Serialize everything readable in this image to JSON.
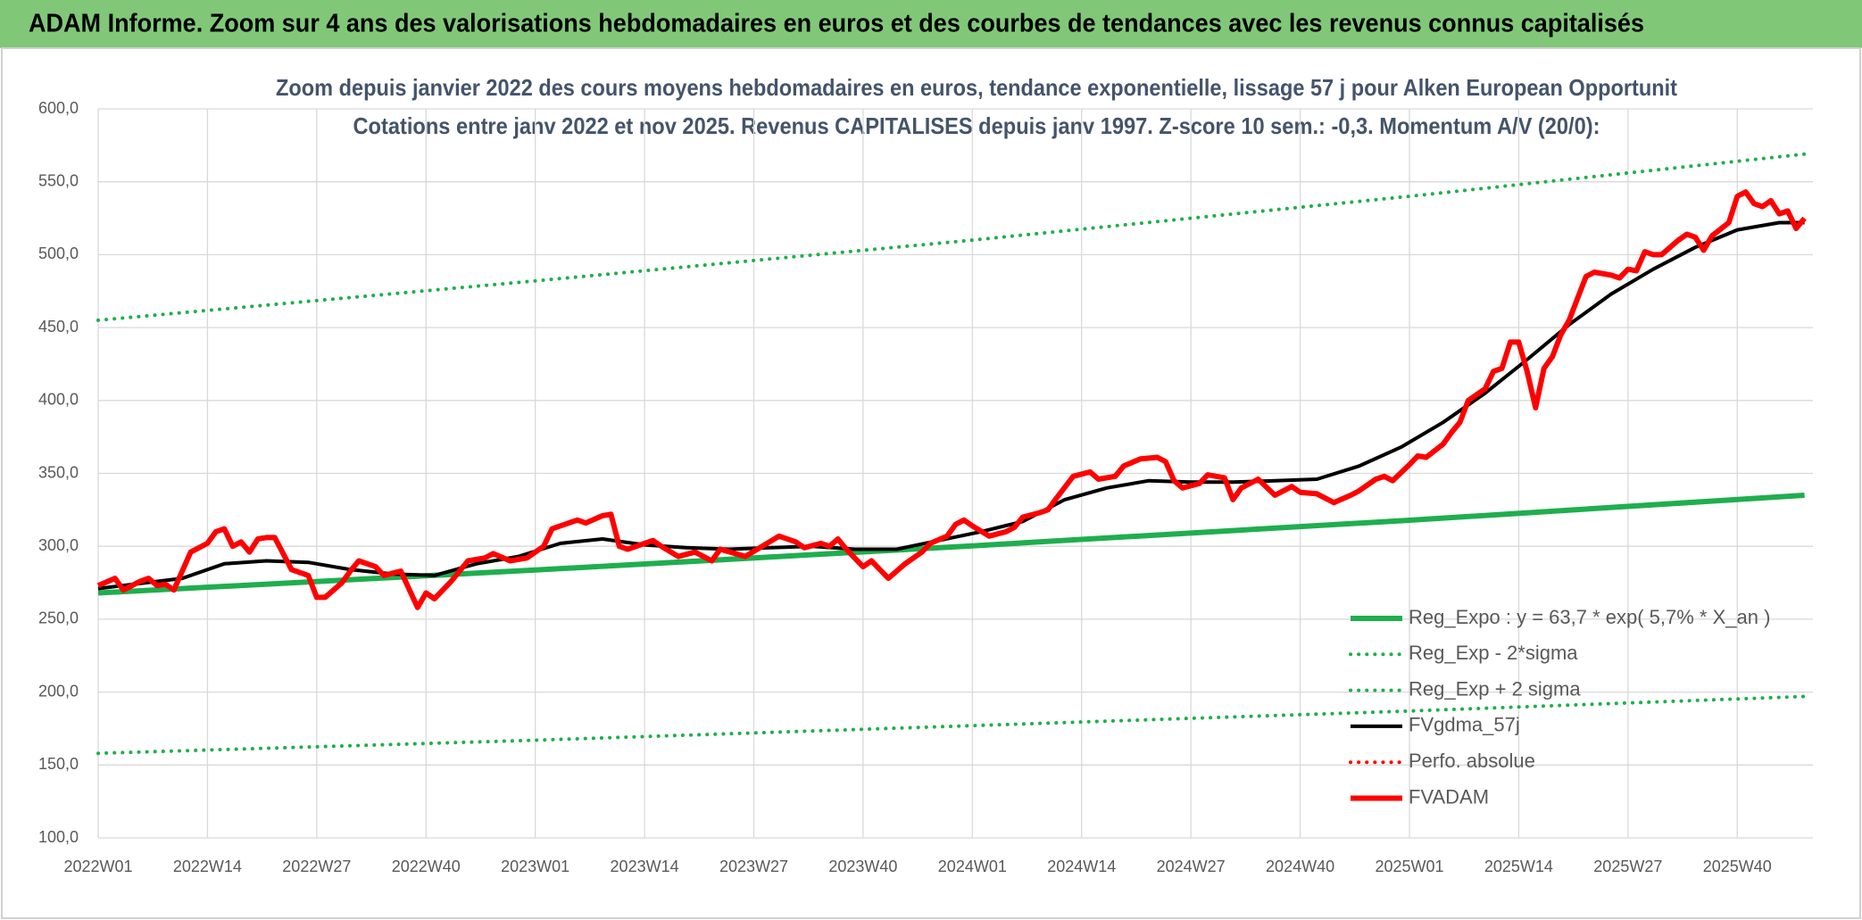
{
  "header": {
    "title": "ADAM Informe. Zoom sur 4 ans des valorisations hebdomadaires en euros et des courbes de tendances avec les revenus connus capitalisés"
  },
  "chart_data": {
    "type": "line",
    "title": "Zoom depuis janvier 2022 des cours moyens hebdomadaires en euros, tendance exponentielle, lissage 57 j pour Alken European Opportunit",
    "subtitle": "Cotations entre janv 2022 et nov 2025. Revenus CAPITALISES depuis janv 1997. Z-score 10 sem.: -0,3. Momentum A/V (20/0):",
    "xlim": [
      0,
      204
    ],
    "xticks": [
      {
        "value": 0,
        "label": "2022W01"
      },
      {
        "value": 13,
        "label": "2022W14"
      },
      {
        "value": 26,
        "label": "2022W27"
      },
      {
        "value": 39,
        "label": "2022W40"
      },
      {
        "value": 52,
        "label": "2023W01"
      },
      {
        "value": 65,
        "label": "2023W14"
      },
      {
        "value": 78,
        "label": "2023W27"
      },
      {
        "value": 91,
        "label": "2023W40"
      },
      {
        "value": 104,
        "label": "2024W01"
      },
      {
        "value": 117,
        "label": "2024W14"
      },
      {
        "value": 130,
        "label": "2024W27"
      },
      {
        "value": 143,
        "label": "2024W40"
      },
      {
        "value": 156,
        "label": "2025W01"
      },
      {
        "value": 169,
        "label": "2025W14"
      },
      {
        "value": 182,
        "label": "2025W27"
      },
      {
        "value": 195,
        "label": "2025W40"
      }
    ],
    "ylim": [
      100,
      600
    ],
    "yticks": [
      {
        "value": 100,
        "label": "100,0"
      },
      {
        "value": 150,
        "label": "150,0"
      },
      {
        "value": 200,
        "label": "200,0"
      },
      {
        "value": 250,
        "label": "250,0"
      },
      {
        "value": 300,
        "label": "300,0"
      },
      {
        "value": 350,
        "label": "350,0"
      },
      {
        "value": 400,
        "label": "400,0"
      },
      {
        "value": 450,
        "label": "450,0"
      },
      {
        "value": 500,
        "label": "500,0"
      },
      {
        "value": 550,
        "label": "550,0"
      },
      {
        "value": 600,
        "label": "600,0"
      }
    ],
    "grid": true,
    "legend": "lower right",
    "series": [
      {
        "name": "Reg_Expo : y = 63,7 * exp( 5,7% *  X_an )",
        "color": "#1fae4f",
        "style": "thick",
        "x": [
          0,
          52,
          104,
          156,
          203
        ],
        "values": [
          268,
          283.7,
          300.3,
          317.9,
          335
        ]
      },
      {
        "name": "Reg_Exp - 2*sigma",
        "color": "#1fae4f",
        "style": "dotted",
        "x": [
          0,
          52,
          104,
          156,
          203
        ],
        "values": [
          158,
          167,
          177,
          187,
          197
        ]
      },
      {
        "name": "Reg_Exp + 2 sigma",
        "color": "#1fae4f",
        "style": "dotted",
        "x": [
          0,
          52,
          104,
          156,
          203
        ],
        "values": [
          455,
          482,
          510,
          540,
          569
        ]
      },
      {
        "name": "FVgdma_57j",
        "color": "#000000",
        "style": "solid",
        "x": [
          0,
          10,
          15,
          20,
          25,
          30,
          35,
          40,
          45,
          50,
          55,
          60,
          65,
          70,
          75,
          80,
          85,
          90,
          95,
          100,
          105,
          110,
          115,
          120,
          125,
          130,
          135,
          140,
          145,
          150,
          155,
          160,
          165,
          170,
          175,
          180,
          185,
          190,
          195,
          200,
          203
        ],
        "values": [
          271,
          278,
          288,
          290,
          289,
          284,
          281,
          280,
          288,
          293,
          302,
          305,
          301,
          299,
          298,
          299,
          300,
          298,
          298,
          304,
          310,
          317,
          332,
          340,
          345,
          344,
          344,
          345,
          346,
          355,
          368,
          385,
          405,
          428,
          452,
          473,
          490,
          505,
          517,
          522,
          522
        ]
      },
      {
        "name": "Perfo. absolue",
        "color": "#ff0000",
        "style": "dotted",
        "x": [],
        "values": []
      },
      {
        "name": "FVADAM",
        "color": "#ff0000",
        "style": "thick",
        "x": [
          0,
          2,
          3,
          5,
          6,
          7,
          8,
          9,
          11,
          13,
          14,
          15,
          16,
          17,
          18,
          19,
          20,
          21,
          23,
          25,
          26,
          27,
          29,
          30,
          31,
          33,
          34,
          36,
          38,
          39,
          40,
          42,
          44,
          46,
          47,
          49,
          51,
          53,
          54,
          55,
          57,
          58,
          60,
          61,
          62,
          63,
          65,
          66,
          67,
          69,
          71,
          73,
          74,
          77,
          79,
          81,
          83,
          84,
          86,
          87,
          88,
          89,
          91,
          92,
          94,
          96,
          98,
          99,
          101,
          102,
          103,
          104,
          106,
          108,
          109,
          110,
          112,
          113,
          114,
          116,
          118,
          119,
          121,
          122,
          124,
          126,
          127,
          128,
          129,
          131,
          132,
          133,
          134,
          135,
          136,
          138,
          140,
          142,
          143,
          145,
          147,
          149,
          150,
          152,
          153,
          154,
          156,
          157,
          158,
          160,
          161,
          162,
          163,
          165,
          166,
          167,
          168,
          169,
          170,
          171,
          172,
          173,
          174,
          175,
          176,
          177,
          178,
          180,
          181,
          182,
          183,
          184,
          185,
          186,
          187,
          188,
          189,
          190,
          191,
          192,
          194,
          195,
          196,
          197,
          198,
          199,
          200,
          201,
          202,
          203
        ],
        "values": [
          273,
          278,
          270,
          276,
          278,
          273,
          274,
          270,
          296,
          302,
          310,
          312,
          300,
          303,
          296,
          305,
          306,
          306,
          284,
          280,
          265,
          265,
          275,
          283,
          290,
          286,
          280,
          283,
          258,
          268,
          264,
          276,
          290,
          292,
          295,
          290,
          292,
          300,
          312,
          314,
          318,
          316,
          321,
          322,
          300,
          298,
          302,
          304,
          300,
          293,
          296,
          290,
          298,
          293,
          300,
          307,
          303,
          299,
          302,
          300,
          305,
          298,
          286,
          290,
          278,
          288,
          296,
          302,
          307,
          315,
          318,
          314,
          307,
          310,
          313,
          320,
          323,
          325,
          333,
          348,
          351,
          346,
          348,
          355,
          360,
          361,
          358,
          345,
          340,
          343,
          349,
          348,
          347,
          332,
          340,
          346,
          335,
          341,
          337,
          336,
          330,
          335,
          338,
          346,
          348,
          345,
          356,
          362,
          361,
          370,
          378,
          385,
          400,
          408,
          420,
          422,
          440,
          440,
          420,
          395,
          422,
          430,
          445,
          455,
          470,
          485,
          488,
          486,
          484,
          490,
          489,
          502,
          500,
          500,
          505,
          510,
          514,
          512,
          503,
          513,
          522,
          540,
          543,
          535,
          533,
          537,
          528,
          530,
          518,
          525
        ]
      }
    ]
  }
}
